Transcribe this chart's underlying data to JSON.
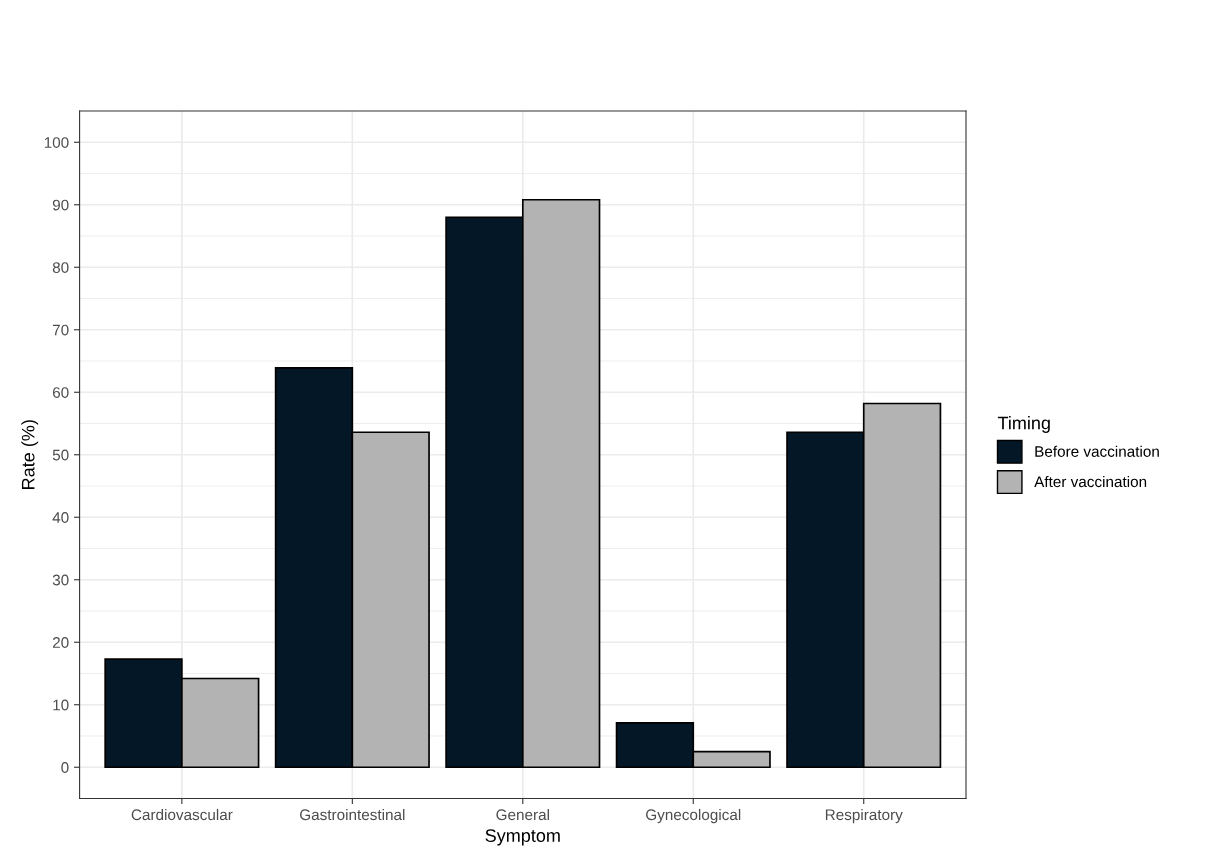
{
  "chart_data": {
    "type": "bar",
    "xlabel": "Symptom",
    "ylabel": "Rate (%)",
    "legend_title": "Timing",
    "categories": [
      "Cardiovascular",
      "Gastrointestinal",
      "General",
      "Gynecological",
      "Respiratory"
    ],
    "series": [
      {
        "name": "Before vaccination",
        "color": "#041726",
        "values": [
          17.3,
          63.9,
          88.0,
          7.1,
          53.6
        ]
      },
      {
        "name": "After vaccination",
        "color": "#b3b3b3",
        "values": [
          14.2,
          53.6,
          90.8,
          2.5,
          58.2
        ]
      }
    ],
    "ylim": [
      -5,
      105
    ],
    "yticks": [
      0,
      10,
      20,
      30,
      40,
      50,
      60,
      70,
      80,
      90,
      100
    ],
    "grid": true,
    "legend": "right"
  }
}
